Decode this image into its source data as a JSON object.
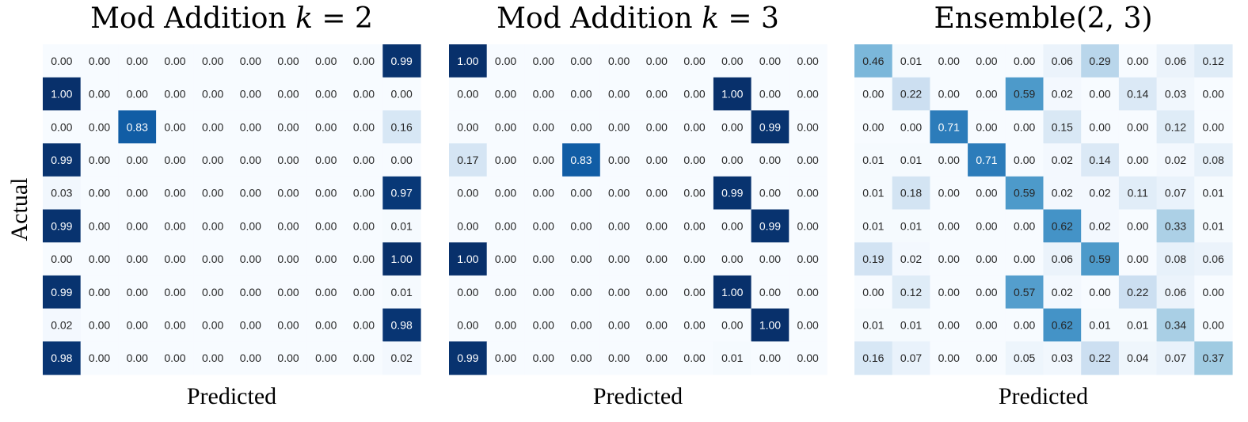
{
  "chart_data": [
    {
      "type": "heatmap",
      "title_prefix": "Mod Addition",
      "title_var": "k",
      "title_suffix": " = 2",
      "xlabel": "Predicted",
      "ylabel": "Actual",
      "colormap": "Blues",
      "vmin": 0,
      "vmax": 1,
      "values": [
        [
          0.0,
          0.0,
          0.0,
          0.0,
          0.0,
          0.0,
          0.0,
          0.0,
          0.0,
          0.99
        ],
        [
          1.0,
          0.0,
          0.0,
          0.0,
          0.0,
          0.0,
          0.0,
          0.0,
          0.0,
          0.0
        ],
        [
          0.0,
          0.0,
          0.83,
          0.0,
          0.0,
          0.0,
          0.0,
          0.0,
          0.0,
          0.16
        ],
        [
          0.99,
          0.0,
          0.0,
          0.0,
          0.0,
          0.0,
          0.0,
          0.0,
          0.0,
          0.0
        ],
        [
          0.03,
          0.0,
          0.0,
          0.0,
          0.0,
          0.0,
          0.0,
          0.0,
          0.0,
          0.97
        ],
        [
          0.99,
          0.0,
          0.0,
          0.0,
          0.0,
          0.0,
          0.0,
          0.0,
          0.0,
          0.01
        ],
        [
          0.0,
          0.0,
          0.0,
          0.0,
          0.0,
          0.0,
          0.0,
          0.0,
          0.0,
          1.0
        ],
        [
          0.99,
          0.0,
          0.0,
          0.0,
          0.0,
          0.0,
          0.0,
          0.0,
          0.0,
          0.01
        ],
        [
          0.02,
          0.0,
          0.0,
          0.0,
          0.0,
          0.0,
          0.0,
          0.0,
          0.0,
          0.98
        ],
        [
          0.98,
          0.0,
          0.0,
          0.0,
          0.0,
          0.0,
          0.0,
          0.0,
          0.0,
          0.02
        ]
      ]
    },
    {
      "type": "heatmap",
      "title_prefix": "Mod Addition",
      "title_var": "k",
      "title_suffix": " = 3",
      "xlabel": "Predicted",
      "ylabel": "",
      "colormap": "Blues",
      "vmin": 0,
      "vmax": 1,
      "values": [
        [
          1.0,
          0.0,
          0.0,
          0.0,
          0.0,
          0.0,
          0.0,
          0.0,
          0.0,
          0.0
        ],
        [
          0.0,
          0.0,
          0.0,
          0.0,
          0.0,
          0.0,
          0.0,
          1.0,
          0.0,
          0.0
        ],
        [
          0.0,
          0.0,
          0.0,
          0.0,
          0.0,
          0.0,
          0.0,
          0.0,
          0.99,
          0.0
        ],
        [
          0.17,
          0.0,
          0.0,
          0.83,
          0.0,
          0.0,
          0.0,
          0.0,
          0.0,
          0.0
        ],
        [
          0.0,
          0.0,
          0.0,
          0.0,
          0.0,
          0.0,
          0.0,
          0.99,
          0.0,
          0.0
        ],
        [
          0.0,
          0.0,
          0.0,
          0.0,
          0.0,
          0.0,
          0.0,
          0.0,
          0.99,
          0.0
        ],
        [
          1.0,
          0.0,
          0.0,
          0.0,
          0.0,
          0.0,
          0.0,
          0.0,
          0.0,
          0.0
        ],
        [
          0.0,
          0.0,
          0.0,
          0.0,
          0.0,
          0.0,
          0.0,
          1.0,
          0.0,
          0.0
        ],
        [
          0.0,
          0.0,
          0.0,
          0.0,
          0.0,
          0.0,
          0.0,
          0.0,
          1.0,
          0.0
        ],
        [
          0.99,
          0.0,
          0.0,
          0.0,
          0.0,
          0.0,
          0.0,
          0.01,
          0.0,
          0.0
        ]
      ]
    },
    {
      "type": "heatmap",
      "title_prefix": "Ensemble(2, 3)",
      "title_var": "",
      "title_suffix": "",
      "xlabel": "Predicted",
      "ylabel": "",
      "colormap": "Blues",
      "vmin": 0,
      "vmax": 1,
      "values": [
        [
          0.46,
          0.01,
          0.0,
          0.0,
          0.0,
          0.06,
          0.29,
          0.0,
          0.06,
          0.12
        ],
        [
          0.0,
          0.22,
          0.0,
          0.0,
          0.59,
          0.02,
          0.0,
          0.14,
          0.03,
          0.0
        ],
        [
          0.0,
          0.0,
          0.71,
          0.0,
          0.0,
          0.15,
          0.0,
          0.0,
          0.12,
          0.0
        ],
        [
          0.01,
          0.01,
          0.0,
          0.71,
          0.0,
          0.02,
          0.14,
          0.0,
          0.02,
          0.08
        ],
        [
          0.01,
          0.18,
          0.0,
          0.0,
          0.59,
          0.02,
          0.02,
          0.11,
          0.07,
          0.01
        ],
        [
          0.01,
          0.01,
          0.0,
          0.0,
          0.0,
          0.62,
          0.02,
          0.0,
          0.33,
          0.01
        ],
        [
          0.19,
          0.02,
          0.0,
          0.0,
          0.0,
          0.06,
          0.59,
          0.0,
          0.08,
          0.06
        ],
        [
          0.0,
          0.12,
          0.0,
          0.0,
          0.57,
          0.02,
          0.0,
          0.22,
          0.06,
          0.0
        ],
        [
          0.01,
          0.01,
          0.0,
          0.0,
          0.0,
          0.62,
          0.01,
          0.01,
          0.34,
          0.0
        ],
        [
          0.16,
          0.07,
          0.0,
          0.0,
          0.05,
          0.03,
          0.22,
          0.04,
          0.07,
          0.37
        ]
      ]
    }
  ]
}
